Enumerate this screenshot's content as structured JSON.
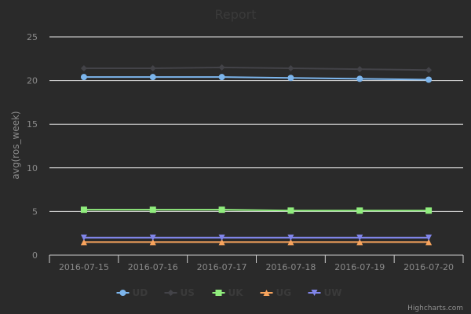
{
  "chart_data": {
    "type": "line",
    "title": "Report",
    "xlabel": "",
    "ylabel": "avg(ros_week)",
    "categories": [
      "2016-07-15",
      "2016-07-16",
      "2016-07-17",
      "2016-07-18",
      "2016-07-19",
      "2016-07-20"
    ],
    "ylim": [
      0,
      25
    ],
    "yticks": [
      0,
      5,
      10,
      15,
      20,
      25
    ],
    "grid": true,
    "legend_position": "bottom-center",
    "series": [
      {
        "name": "UD",
        "color": "#7cb5ec",
        "marker": "circle",
        "values": [
          20.4,
          20.4,
          20.4,
          20.3,
          20.2,
          20.1
        ]
      },
      {
        "name": "US",
        "color": "#434348",
        "marker": "diamond",
        "values": [
          21.4,
          21.4,
          21.5,
          21.4,
          21.3,
          21.2
        ]
      },
      {
        "name": "UK",
        "color": "#90ed7d",
        "marker": "square",
        "values": [
          5.2,
          5.2,
          5.2,
          5.1,
          5.1,
          5.1
        ]
      },
      {
        "name": "UG",
        "color": "#f7a35c",
        "marker": "triangle",
        "values": [
          1.5,
          1.5,
          1.5,
          1.5,
          1.5,
          1.5
        ]
      },
      {
        "name": "UW",
        "color": "#8085e9",
        "marker": "triangle-down",
        "values": [
          2.0,
          2.0,
          2.0,
          2.0,
          2.0,
          2.0
        ]
      }
    ],
    "credits": "Highcharts.com"
  }
}
